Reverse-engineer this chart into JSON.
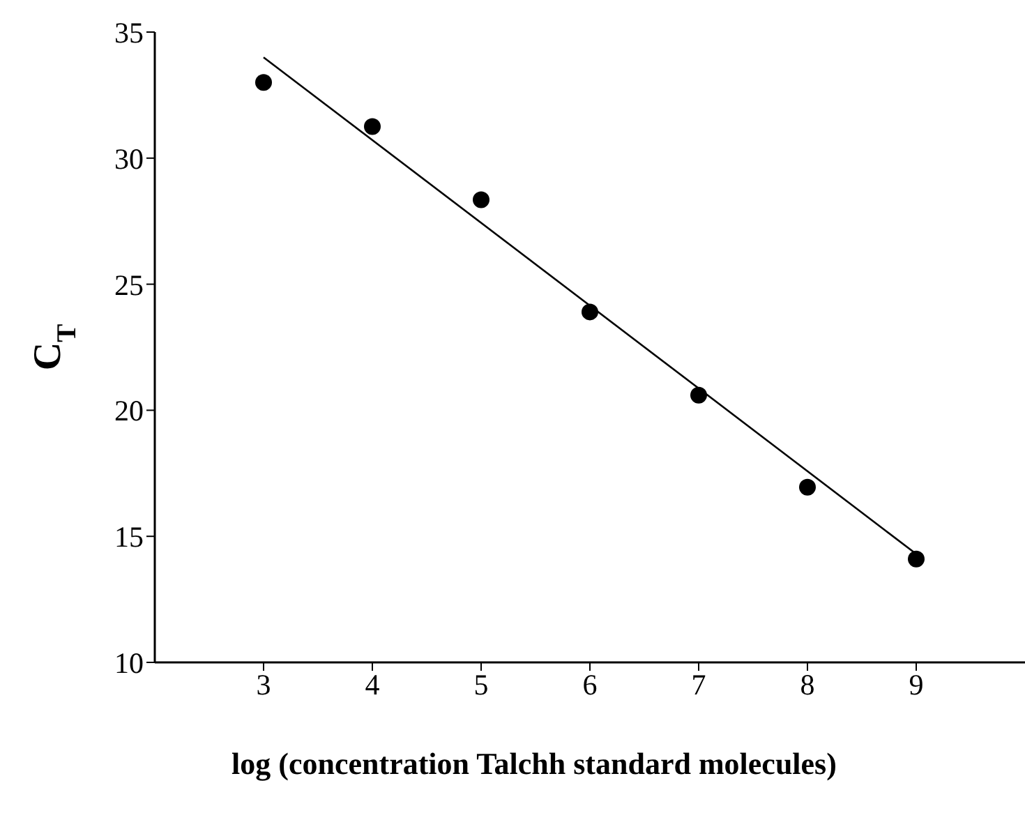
{
  "chart_data": {
    "type": "scatter",
    "xlabel": "log (concentration Talchh standard molecules)",
    "ylabel": "C$_{T}$",
    "xlim": [
      2,
      10
    ],
    "xticks": [
      3,
      4,
      5,
      6,
      7,
      8,
      9
    ],
    "ylim": [
      10,
      35
    ],
    "yticks": [
      10,
      15,
      20,
      25,
      30,
      35
    ],
    "series": [
      {
        "color": "#000000",
        "marker": "circle",
        "x": [
          3,
          4,
          5,
          6,
          7,
          8,
          9
        ],
        "values": [
          33.0,
          31.25,
          28.35,
          23.9,
          20.6,
          16.95,
          14.1
        ]
      },
      {
        "type": "line",
        "color": "#000000",
        "marker": "none",
        "line_style": "solid",
        "x": [
          3,
          9
        ],
        "values": [
          34.0,
          14.3
        ]
      }
    ]
  }
}
